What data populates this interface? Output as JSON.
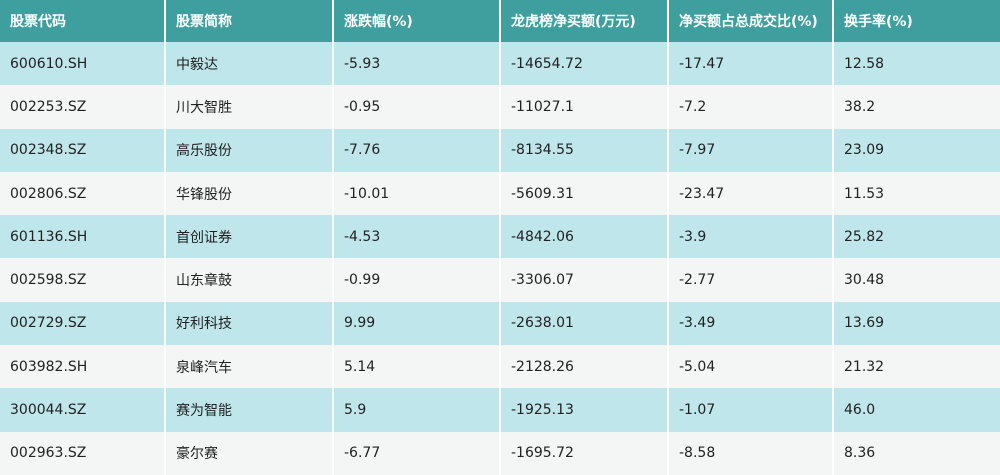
{
  "table": {
    "header": [
      "股票代码",
      "股票简称",
      "涨跌幅(%)",
      "龙虎榜净买额(万元)",
      "净买额占总成交比(%)",
      "换手率(%)"
    ],
    "rows": [
      [
        "600610.SH",
        "中毅达",
        "-5.93",
        "-14654.72",
        "-17.47",
        "12.58"
      ],
      [
        "002253.SZ",
        "川大智胜",
        "-0.95",
        "-11027.1",
        "-7.2",
        "38.2"
      ],
      [
        "002348.SZ",
        "高乐股份",
        "-7.76",
        "-8134.55",
        "-7.97",
        "23.09"
      ],
      [
        "002806.SZ",
        "华锋股份",
        "-10.01",
        "-5609.31",
        "-23.47",
        "11.53"
      ],
      [
        "601136.SH",
        "首创证券",
        "-4.53",
        "-4842.06",
        "-3.9",
        "25.82"
      ],
      [
        "002598.SZ",
        "山东章鼓",
        "-0.99",
        "-3306.07",
        "-2.77",
        "30.48"
      ],
      [
        "002729.SZ",
        "好利科技",
        "9.99",
        "-2638.01",
        "-3.49",
        "13.69"
      ],
      [
        "603982.SH",
        "泉峰汽车",
        "5.14",
        "-2128.26",
        "-5.04",
        "21.32"
      ],
      [
        "300044.SZ",
        "赛为智能",
        "5.9",
        "-1925.13",
        "-1.07",
        "46.0"
      ],
      [
        "002963.SZ",
        "豪尔赛",
        "-6.77",
        "-1695.72",
        "-8.58",
        "8.36"
      ]
    ]
  }
}
